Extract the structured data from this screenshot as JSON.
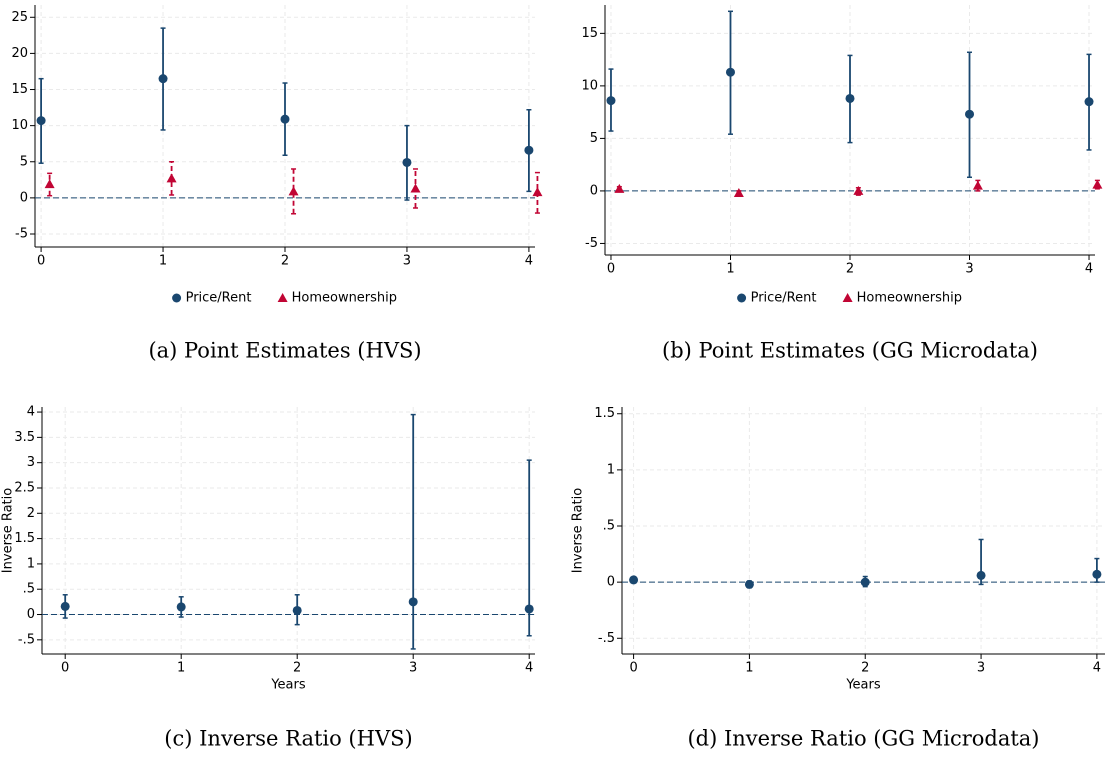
{
  "chart_data": [
    {
      "type": "errorbar",
      "caption": "(a) Point Estimates (HVS)",
      "xlim": [
        -0.05,
        4.05
      ],
      "xticks": [
        0,
        1,
        2,
        3,
        4
      ],
      "ylim": [
        -6.8,
        26.7
      ],
      "yticks": [
        -5,
        0,
        5,
        10,
        15,
        20,
        25
      ],
      "grid": true,
      "reference_line": 0,
      "legend": "bottom",
      "series": [
        {
          "name": "Price/Rent",
          "color": "#1a476f",
          "marker": "circle",
          "dashed": false,
          "x": [
            0,
            1,
            2,
            3,
            4
          ],
          "values": [
            10.7,
            16.5,
            10.9,
            4.9,
            6.6
          ],
          "lower": [
            4.8,
            9.4,
            5.9,
            -0.3,
            0.9
          ],
          "upper": [
            16.5,
            23.5,
            15.9,
            10.0,
            12.2
          ]
        },
        {
          "name": "Homeownership",
          "color": "#c10534",
          "marker": "triangle",
          "dashed": true,
          "x": [
            0.07,
            1.07,
            2.07,
            3.07,
            4.07
          ],
          "values": [
            1.9,
            2.7,
            0.9,
            1.3,
            0.8
          ],
          "lower": [
            0.3,
            0.4,
            -2.2,
            -1.4,
            -2.1
          ],
          "upper": [
            3.4,
            5.0,
            4.0,
            4.0,
            3.5
          ]
        }
      ]
    },
    {
      "type": "errorbar",
      "caption": "(b) Point Estimates (GG Microdata)",
      "xlim": [
        -0.05,
        4.05
      ],
      "xticks": [
        0,
        1,
        2,
        3,
        4
      ],
      "ylim": [
        -6.1,
        17.7
      ],
      "yticks": [
        -5,
        0,
        5,
        10,
        15
      ],
      "grid": true,
      "reference_line": 0,
      "legend": "bottom",
      "series": [
        {
          "name": "Price/Rent",
          "color": "#1a476f",
          "marker": "circle",
          "dashed": false,
          "x": [
            0,
            1,
            2,
            3,
            4
          ],
          "values": [
            8.6,
            11.3,
            8.8,
            7.3,
            8.5
          ],
          "lower": [
            5.7,
            5.4,
            4.6,
            1.3,
            3.9
          ],
          "upper": [
            11.6,
            17.1,
            12.9,
            13.2,
            13.0
          ]
        },
        {
          "name": "Homeownership",
          "color": "#c10534",
          "marker": "triangle",
          "dashed": true,
          "x": [
            0.07,
            1.07,
            2.07,
            3.07,
            4.07
          ],
          "values": [
            0.2,
            -0.2,
            0.0,
            0.5,
            0.6
          ],
          "lower": [
            0.0,
            -0.4,
            -0.4,
            0.0,
            0.2
          ],
          "upper": [
            0.4,
            0.0,
            0.3,
            1.0,
            1.0
          ]
        }
      ]
    },
    {
      "type": "errorbar",
      "caption": "(c) Inverse Ratio (HVS)",
      "y_label": "Inverse Ratio",
      "x_label": "Years",
      "xlim": [
        -0.2,
        4.05
      ],
      "xticks": [
        0,
        1,
        2,
        3,
        4
      ],
      "ylim": [
        -0.78,
        4.1
      ],
      "yticks": [
        {
          "value": -0.5,
          "label": "-.5"
        },
        0,
        {
          "value": 0.5,
          "label": ".5"
        },
        1,
        1.5,
        2,
        2.5,
        3,
        3.5,
        4
      ],
      "grid": true,
      "reference_line": 0,
      "series": [
        {
          "color": "#1a476f",
          "marker": "circle",
          "dashed": false,
          "x": [
            0,
            1,
            2,
            3,
            4
          ],
          "values": [
            0.16,
            0.15,
            0.08,
            0.25,
            0.11
          ],
          "lower": [
            -0.07,
            -0.05,
            -0.2,
            -0.68,
            -0.42
          ],
          "upper": [
            0.39,
            0.35,
            0.39,
            3.95,
            3.05
          ]
        }
      ]
    },
    {
      "type": "errorbar",
      "caption": "(d) Inverse Ratio (GG Microdata)",
      "y_label": "Inverse Ratio",
      "x_label": "Years",
      "xlim": [
        -0.1,
        4.07
      ],
      "xticks": [
        0,
        1,
        2,
        3,
        4
      ],
      "ylim": [
        -0.64,
        1.56
      ],
      "yticks": [
        {
          "value": -0.5,
          "label": "-.5"
        },
        0,
        {
          "value": 0.5,
          "label": ".5"
        },
        1,
        1.5
      ],
      "grid": true,
      "reference_line": 0,
      "series": [
        {
          "color": "#1a476f",
          "marker": "circle",
          "dashed": false,
          "x": [
            0,
            1,
            2,
            3,
            4
          ],
          "values": [
            0.02,
            -0.02,
            0.0,
            0.06,
            0.07
          ],
          "lower": [
            0.0,
            -0.05,
            -0.04,
            -0.02,
            0.0
          ],
          "upper": [
            0.03,
            0.01,
            0.05,
            0.38,
            0.21
          ]
        }
      ]
    }
  ]
}
